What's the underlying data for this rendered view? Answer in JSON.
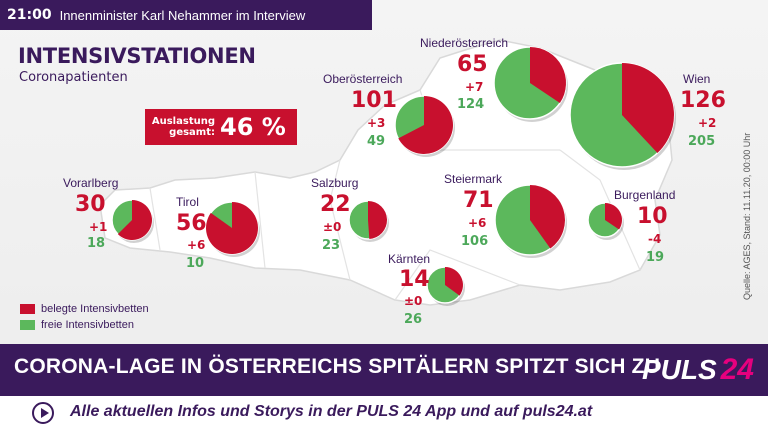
{
  "topbar": {
    "time": "21:00",
    "show": "Innenminister Karl Nehammer im Interview"
  },
  "title": "INTENSIVSTATIONEN",
  "subtitle": "Coronapatienten",
  "utilization": {
    "label_line1": "Auslastung",
    "label_line2": "gesamt:",
    "value": "46 %"
  },
  "regions": [
    {
      "id": "vorarlberg",
      "name": "Vorarlberg",
      "occupied": "30",
      "change": "+1",
      "free": "18",
      "occupied_n": 30,
      "free_n": 18
    },
    {
      "id": "tirol",
      "name": "Tirol",
      "occupied": "56",
      "change": "+6",
      "free": "10",
      "occupied_n": 56,
      "free_n": 10
    },
    {
      "id": "salzburg",
      "name": "Salzburg",
      "occupied": "22",
      "change": "±0",
      "free": "23",
      "occupied_n": 22,
      "free_n": 23
    },
    {
      "id": "oberoesterreich",
      "name": "Oberösterreich",
      "occupied": "101",
      "change": "+3",
      "free": "49",
      "occupied_n": 101,
      "free_n": 49
    },
    {
      "id": "niederoesterreich",
      "name": "Niederösterreich",
      "occupied": "65",
      "change": "+7",
      "free": "124",
      "occupied_n": 65,
      "free_n": 124
    },
    {
      "id": "wien",
      "name": "Wien",
      "occupied": "126",
      "change": "+2",
      "free": "205",
      "occupied_n": 126,
      "free_n": 205
    },
    {
      "id": "steiermark",
      "name": "Steiermark",
      "occupied": "71",
      "change": "+6",
      "free": "106",
      "occupied_n": 71,
      "free_n": 106
    },
    {
      "id": "kaernten",
      "name": "Kärnten",
      "occupied": "14",
      "change": "±0",
      "free": "26",
      "occupied_n": 14,
      "free_n": 26
    },
    {
      "id": "burgenland",
      "name": "Burgenland",
      "occupied": "10",
      "change": "-4",
      "free": "19",
      "occupied_n": 10,
      "free_n": 19
    }
  ],
  "legend": {
    "occupied": "belegte Intensivbetten",
    "free": "freie Intensivbetten"
  },
  "colors": {
    "occupied": "#c8102e",
    "free": "#5cb85c",
    "brand": "#3a1a5c",
    "accent": "#e6007e"
  },
  "source": "Quelle: AGES, Stand: 11.11.20, 00:00 Uhr",
  "ticker": {
    "headline": "CORONA-LAGE IN ÖSTERREICHS SPITÄLERN SPITZT SICH ZU",
    "logo_text": "PULS",
    "logo_number": "24"
  },
  "lower": {
    "info": "Alle aktuellen Infos und Storys in der PULS 24 App und auf puls24.at"
  }
}
